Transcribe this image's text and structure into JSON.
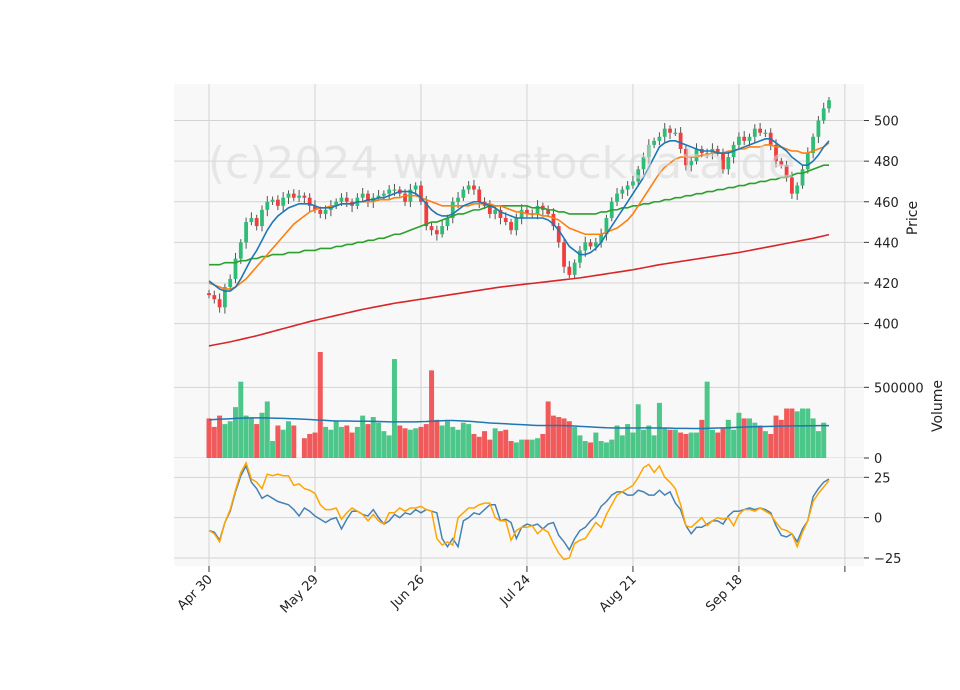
{
  "chart_data": {
    "type": "candlestick",
    "watermark": "(c)2024 www.stockdata.de",
    "x_ticks": [
      "Apr 30",
      "May 29",
      "Jun 26",
      "Jul 24",
      "Aug 21",
      "Sep 18"
    ],
    "colors": {
      "up": "#2ebd76",
      "down": "#ef3e3e",
      "ma_fast": "#1f77b4",
      "ma_mid": "#ff7f0e",
      "ma_slow": "#2ca02c",
      "ma_long": "#d62728",
      "vol_avg": "#1f77b4",
      "osc_a": "#4682b4",
      "osc_b": "#ffa500"
    },
    "price_panel": {
      "ylabel": "Price",
      "ylim": [
        386,
        518
      ],
      "yticks": [
        400,
        420,
        440,
        460,
        480,
        500
      ],
      "closes": [
        414,
        412,
        408,
        418,
        422,
        432,
        440,
        450,
        452,
        448,
        456,
        460,
        461,
        458,
        462,
        464,
        462,
        463,
        462,
        458,
        456,
        454,
        456,
        458,
        460,
        462,
        460,
        458,
        462,
        464,
        460,
        462,
        463,
        464,
        466,
        466,
        464,
        460,
        466,
        468,
        460,
        448,
        446,
        444,
        448,
        452,
        460,
        462,
        466,
        468,
        466,
        460,
        458,
        454,
        456,
        452,
        450,
        446,
        452,
        456,
        454,
        454,
        458,
        456,
        454,
        448,
        440,
        428,
        424,
        430,
        436,
        440,
        438,
        440,
        444,
        452,
        460,
        464,
        466,
        468,
        470,
        476,
        482,
        488,
        490,
        492,
        496,
        494,
        494,
        486,
        478,
        480,
        486,
        484,
        484,
        486,
        484,
        476,
        482,
        488,
        492,
        490,
        492,
        496,
        494,
        494,
        488,
        480,
        478,
        472,
        464,
        468,
        476,
        484,
        492,
        500,
        506,
        510
      ],
      "ma_fast": [
        421,
        419,
        417,
        416,
        416,
        418,
        422,
        427,
        432,
        436,
        441,
        446,
        450,
        453,
        455,
        457,
        458,
        459,
        459,
        459,
        458,
        457,
        457,
        457,
        458,
        459,
        459,
        459,
        460,
        460,
        461,
        461,
        462,
        462,
        463,
        464,
        465,
        465,
        465,
        464,
        462,
        459,
        456,
        454,
        453,
        453,
        454,
        456,
        458,
        459,
        460,
        460,
        459,
        458,
        457,
        455,
        454,
        453,
        452,
        452,
        452,
        452,
        452,
        452,
        451,
        449,
        446,
        442,
        438,
        436,
        434,
        434,
        435,
        437,
        440,
        444,
        448,
        452,
        456,
        460,
        464,
        468,
        472,
        477,
        482,
        487,
        489,
        490,
        490,
        489,
        488,
        487,
        486,
        485,
        485,
        485,
        484,
        484,
        484,
        485,
        486,
        487,
        488,
        489,
        490,
        491,
        491,
        489,
        487,
        485,
        482,
        480,
        478,
        478,
        480,
        483,
        487,
        490
      ],
      "ma_mid": [
        420,
        419,
        418,
        417,
        417,
        418,
        420,
        422,
        425,
        428,
        431,
        434,
        437,
        440,
        443,
        446,
        449,
        451,
        453,
        455,
        456,
        457,
        457,
        458,
        458,
        459,
        459,
        459,
        460,
        460,
        460,
        460,
        461,
        461,
        461,
        462,
        462,
        463,
        463,
        463,
        462,
        461,
        460,
        459,
        458,
        458,
        458,
        458,
        458,
        458,
        459,
        459,
        459,
        459,
        458,
        458,
        457,
        456,
        455,
        455,
        454,
        454,
        454,
        453,
        453,
        452,
        451,
        449,
        447,
        446,
        445,
        444,
        444,
        444,
        444,
        445,
        446,
        447,
        449,
        451,
        454,
        458,
        462,
        466,
        470,
        474,
        477,
        479,
        481,
        482,
        482,
        482,
        482,
        483,
        483,
        484,
        484,
        484,
        485,
        485,
        486,
        486,
        487,
        487,
        487,
        488,
        488,
        487,
        487,
        486,
        485,
        485,
        484,
        484,
        485,
        486,
        487,
        489
      ],
      "ma_slow": [
        429,
        429,
        429,
        430,
        430,
        430,
        431,
        431,
        432,
        432,
        433,
        433,
        434,
        434,
        434,
        435,
        435,
        435,
        436,
        436,
        436,
        437,
        437,
        437,
        438,
        438,
        439,
        439,
        440,
        440,
        441,
        441,
        442,
        442,
        443,
        444,
        444,
        445,
        446,
        447,
        448,
        449,
        450,
        450,
        451,
        452,
        453,
        454,
        454,
        455,
        456,
        456,
        457,
        458,
        458,
        458,
        458,
        458,
        458,
        458,
        458,
        457,
        457,
        457,
        456,
        456,
        455,
        455,
        454,
        454,
        454,
        454,
        454,
        454,
        455,
        455,
        456,
        456,
        457,
        457,
        458,
        458,
        459,
        459,
        460,
        460,
        461,
        461,
        462,
        462,
        463,
        463,
        464,
        464,
        465,
        465,
        466,
        466,
        467,
        467,
        468,
        468,
        469,
        469,
        470,
        470,
        471,
        471,
        472,
        472,
        473,
        474,
        474,
        475,
        476,
        477,
        478,
        478
      ],
      "ma_long": [
        389,
        389.5,
        390,
        390.5,
        391,
        391.6,
        392.2,
        392.8,
        393.4,
        394,
        394.7,
        395.4,
        396.1,
        396.8,
        397.5,
        398.2,
        398.9,
        399.6,
        400.3,
        401,
        401.6,
        402.2,
        402.8,
        403.4,
        404,
        404.6,
        405.2,
        405.8,
        406.4,
        407,
        407.5,
        408,
        408.5,
        409,
        409.5,
        410,
        410.4,
        410.8,
        411.2,
        411.6,
        412,
        412.4,
        412.8,
        413.2,
        413.6,
        414,
        414.4,
        414.8,
        415.2,
        415.6,
        416,
        416.4,
        416.8,
        417.2,
        417.6,
        418,
        418.3,
        418.6,
        418.9,
        419.2,
        419.5,
        419.8,
        420.1,
        420.4,
        420.7,
        421,
        421.3,
        421.6,
        421.9,
        422.2,
        422.5,
        422.9,
        423.3,
        423.7,
        424.1,
        424.5,
        424.9,
        425.3,
        425.7,
        426.1,
        426.5,
        427,
        427.5,
        428,
        428.5,
        429,
        429.4,
        429.8,
        430.2,
        430.6,
        431,
        431.4,
        431.8,
        432.2,
        432.6,
        433,
        433.4,
        433.8,
        434.2,
        434.6,
        435,
        435.5,
        436,
        436.5,
        437,
        437.5,
        438,
        438.5,
        439,
        439.5,
        440,
        440.5,
        441,
        441.5,
        442,
        442.6,
        443.2,
        443.8
      ]
    },
    "volume_panel": {
      "ylabel": "Volume",
      "ylim": [
        0,
        750000
      ],
      "yticks": [
        0,
        500000
      ],
      "ytick_labels": [
        "0",
        "500000"
      ],
      "volumes": [
        280000,
        220000,
        300000,
        240000,
        260000,
        360000,
        540000,
        300000,
        280000,
        240000,
        320000,
        400000,
        120000,
        230000,
        200000,
        260000,
        230000,
        0,
        140000,
        170000,
        180000,
        750000,
        220000,
        200000,
        260000,
        220000,
        230000,
        180000,
        220000,
        300000,
        240000,
        290000,
        250000,
        190000,
        160000,
        700000,
        230000,
        210000,
        200000,
        210000,
        220000,
        240000,
        620000,
        270000,
        230000,
        260000,
        220000,
        200000,
        250000,
        240000,
        170000,
        150000,
        190000,
        130000,
        210000,
        190000,
        200000,
        120000,
        110000,
        130000,
        130000,
        130000,
        140000,
        170000,
        400000,
        300000,
        290000,
        280000,
        260000,
        220000,
        160000,
        120000,
        110000,
        180000,
        120000,
        110000,
        130000,
        230000,
        160000,
        240000,
        180000,
        380000,
        200000,
        230000,
        160000,
        390000,
        210000,
        200000,
        200000,
        180000,
        170000,
        180000,
        180000,
        270000,
        540000,
        200000,
        180000,
        210000,
        270000,
        200000,
        320000,
        280000,
        280000,
        250000,
        230000,
        190000,
        170000,
        300000,
        270000,
        350000,
        350000,
        330000,
        350000,
        350000,
        280000,
        190000,
        250000
      ],
      "vol_avg": [
        270000,
        272000,
        274000,
        276000,
        278000,
        280000,
        282000,
        283000,
        284000,
        284000,
        284000,
        283000,
        282000,
        281000,
        280000,
        279000,
        278000,
        276000,
        274000,
        272000,
        270000,
        268000,
        266000,
        264000,
        262000,
        262000,
        262000,
        261000,
        260000,
        260000,
        260000,
        259000,
        258000,
        257000,
        256000,
        256000,
        256000,
        256000,
        256000,
        256000,
        257000,
        258000,
        260000,
        262000,
        264000,
        265000,
        265000,
        264000,
        262000,
        260000,
        257000,
        254000,
        251000,
        248000,
        246000,
        244000,
        242000,
        240000,
        238000,
        236000,
        234000,
        232000,
        230000,
        230000,
        230000,
        230000,
        230000,
        229000,
        228000,
        226000,
        224000,
        222000,
        220000,
        218000,
        216000,
        214000,
        213000,
        212000,
        212000,
        212000,
        212000,
        212000,
        213000,
        213000,
        212000,
        212000,
        212000,
        211000,
        210000,
        210000,
        210000,
        209000,
        209000,
        209000,
        210000,
        211000,
        212000,
        213000,
        214000,
        216000,
        218000,
        219000,
        220000,
        221000,
        222000,
        223000,
        224000,
        225000,
        226000,
        226000,
        227000,
        227000,
        227000,
        228000,
        228000,
        229000,
        229000,
        229000
      ]
    },
    "oscillator_panel": {
      "ylim": [
        -30,
        37
      ],
      "yticks": [
        -25,
        0,
        25
      ],
      "ytick_labels": [
        "−25",
        "0",
        "25"
      ],
      "osc_a": [
        -8,
        -9,
        -14,
        -3,
        4,
        16,
        26,
        32,
        22,
        18,
        12,
        14,
        12,
        10,
        9,
        8,
        5,
        1,
        6,
        4,
        1,
        -1,
        -3,
        -1,
        0,
        -7,
        -1,
        4,
        4,
        2,
        1,
        5,
        0,
        -4,
        -2,
        2,
        0,
        3,
        2,
        5,
        3,
        5,
        4,
        3,
        -13,
        -18,
        -13,
        -18,
        -2,
        0,
        3,
        2,
        5,
        8,
        8,
        -2,
        -1,
        -3,
        -13,
        -6,
        -4,
        -5,
        -4,
        -7,
        -4,
        -3,
        -11,
        -15,
        -20,
        -13,
        -8,
        -6,
        -2,
        1,
        7,
        10,
        14,
        16,
        16,
        14,
        14,
        17,
        16,
        14,
        14,
        17,
        14,
        16,
        9,
        5,
        -5,
        -10,
        -6,
        -6,
        -4,
        -2,
        -2,
        -4,
        1,
        4,
        4,
        5,
        6,
        5,
        6,
        5,
        3,
        -5,
        -11,
        -12,
        -10,
        -15,
        -7,
        -2,
        13,
        18,
        22,
        24
      ],
      "osc_b": [
        -8,
        -10,
        -15,
        -3,
        5,
        17,
        28,
        34,
        24,
        22,
        18,
        27,
        26,
        27,
        26,
        26,
        20,
        21,
        18,
        17,
        15,
        8,
        5,
        5,
        6,
        -1,
        3,
        6,
        4,
        2,
        -2,
        2,
        -2,
        -4,
        3,
        3,
        6,
        4,
        6,
        6,
        7,
        5,
        4,
        -13,
        -17,
        -15,
        -17,
        0,
        3,
        6,
        6,
        8,
        9,
        9,
        0,
        -2,
        -2,
        -14,
        -8,
        -6,
        -6,
        -5,
        -10,
        -7,
        -9,
        -16,
        -22,
        -26,
        -25,
        -16,
        -14,
        -13,
        -8,
        -3,
        -6,
        2,
        8,
        14,
        16,
        18,
        20,
        25,
        31,
        33,
        28,
        32,
        25,
        22,
        18,
        8,
        -5,
        -6,
        -3,
        0,
        -5,
        -2,
        0,
        -1,
        0,
        -5,
        2,
        5,
        5,
        4,
        6,
        4,
        2,
        -3,
        -7,
        -8,
        -10,
        -18,
        -9,
        -2,
        10,
        15,
        19,
        23
      ]
    }
  }
}
